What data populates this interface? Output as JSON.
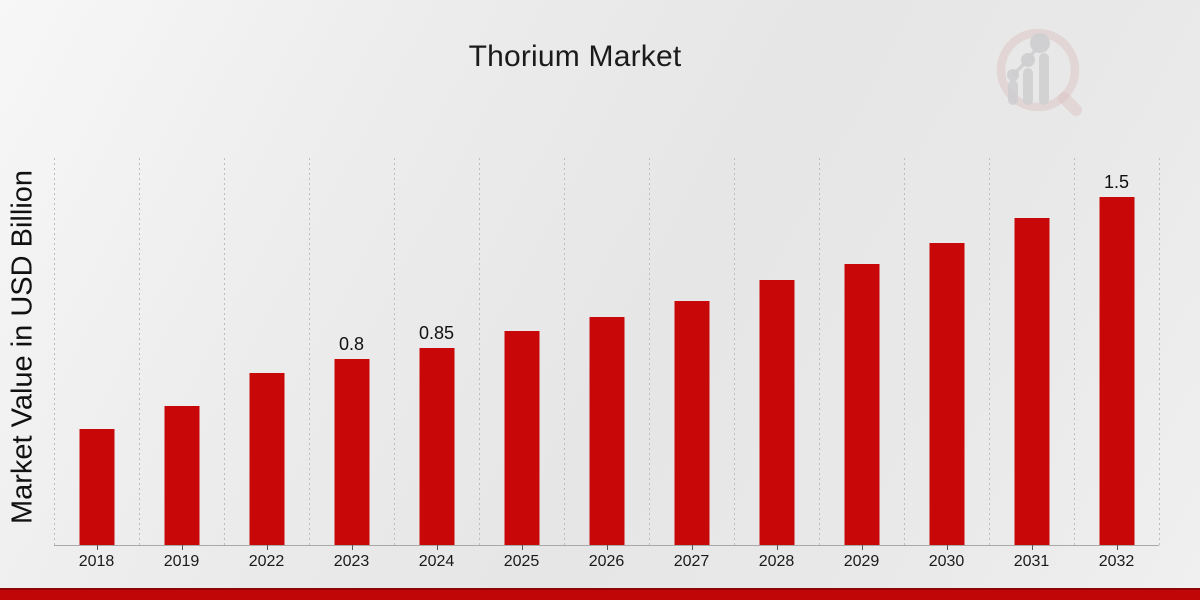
{
  "chart_data": {
    "type": "bar",
    "title": "Thorium Market",
    "xlabel": "",
    "ylabel": "Market Value in USD Billion",
    "categories": [
      "2018",
      "2019",
      "2022",
      "2023",
      "2024",
      "2025",
      "2026",
      "2027",
      "2028",
      "2029",
      "2030",
      "2031",
      "2032"
    ],
    "values": [
      0.5,
      0.6,
      0.74,
      0.8,
      0.85,
      0.92,
      0.98,
      1.05,
      1.14,
      1.21,
      1.3,
      1.41,
      1.5
    ],
    "bar_labels": [
      "",
      "",
      "",
      "0.8",
      "0.85",
      "",
      "",
      "",
      "",
      "",
      "",
      "",
      "1.5"
    ],
    "ylim": [
      0,
      1.68
    ],
    "grid": "vertical-dotted",
    "legend_position": "none",
    "bar_color": "#c80808"
  },
  "branding": {
    "logo_icon": "magnifier-growth-chart-logo",
    "logo_ring_color": "#d2a2a2",
    "logo_bars_color": "#b4b4b8",
    "footer_bar_color": "#c00606",
    "footer_bar_top_color": "#8e0505"
  }
}
